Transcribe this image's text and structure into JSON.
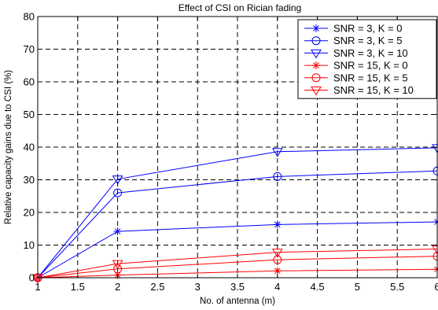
{
  "chart_data": {
    "type": "line",
    "title": "Effect of CSI on Rician fading",
    "xlabel": "No. of antenna (m)",
    "ylabel": "Relative capacity gains due to CSI (%)",
    "xlim": [
      1,
      6
    ],
    "ylim": [
      0,
      80
    ],
    "xticks": [
      1,
      1.5,
      2,
      2.5,
      3,
      3.5,
      4,
      4.5,
      5,
      5.5,
      6
    ],
    "xtick_labels": [
      "1",
      "1.5",
      "2",
      "2.5",
      "3",
      "3.5",
      "4",
      "4.5",
      "5",
      "5.5",
      "6"
    ],
    "yticks": [
      0,
      10,
      20,
      30,
      40,
      50,
      60,
      70,
      80
    ],
    "ytick_labels": [
      "0",
      "10",
      "20",
      "30",
      "40",
      "50",
      "60",
      "70",
      "80"
    ],
    "grid": true,
    "legend_position": "top-right",
    "x": [
      1,
      2,
      4,
      6
    ],
    "series": [
      {
        "name": "SNR = 3, K = 0",
        "color": "#0000ff",
        "marker": "star",
        "values": [
          0,
          14.2,
          16.3,
          17.1
        ]
      },
      {
        "name": "SNR = 3, K = 5",
        "color": "#0000ff",
        "marker": "circle",
        "values": [
          0,
          26,
          31,
          32.7
        ]
      },
      {
        "name": "SNR = 3, K = 10",
        "color": "#0000ff",
        "marker": "triangle-down",
        "values": [
          0,
          30.2,
          38.6,
          39.8
        ]
      },
      {
        "name": "SNR = 15, K = 0",
        "color": "#ff0000",
        "marker": "star",
        "values": [
          0,
          0.8,
          2.1,
          2.6
        ]
      },
      {
        "name": "SNR = 15, K = 5",
        "color": "#ff0000",
        "marker": "circle",
        "values": [
          0,
          2.7,
          5.5,
          6.6
        ]
      },
      {
        "name": "SNR = 15, K = 10",
        "color": "#ff0000",
        "marker": "triangle-down",
        "values": [
          0,
          4.3,
          7.8,
          8.8
        ]
      }
    ]
  }
}
